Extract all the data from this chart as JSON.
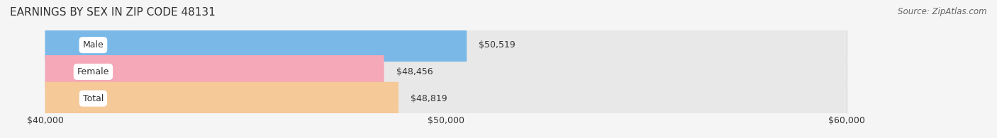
{
  "title": "EARNINGS BY SEX IN ZIP CODE 48131",
  "source": "Source: ZipAtlas.com",
  "categories": [
    "Male",
    "Female",
    "Total"
  ],
  "values": [
    50519,
    48456,
    48819
  ],
  "bar_colors": [
    "#7ab8e8",
    "#f4a8b8",
    "#f5c998"
  ],
  "bar_bg_color": "#e8e8e8",
  "value_labels": [
    "$50,519",
    "$48,456",
    "$48,819"
  ],
  "xmin": 40000,
  "xmax": 60000,
  "xticks": [
    40000,
    50000,
    60000
  ],
  "xtick_labels": [
    "$40,000",
    "$50,000",
    "$60,000"
  ],
  "title_fontsize": 11,
  "label_fontsize": 9,
  "value_fontsize": 9,
  "source_fontsize": 8.5,
  "bar_height": 0.62,
  "bg_color": "#f5f5f5",
  "title_color": "#333333",
  "source_color": "#666666",
  "label_bg_color": "#ffffff",
  "label_text_color": "#333333",
  "grid_color": "#cccccc"
}
